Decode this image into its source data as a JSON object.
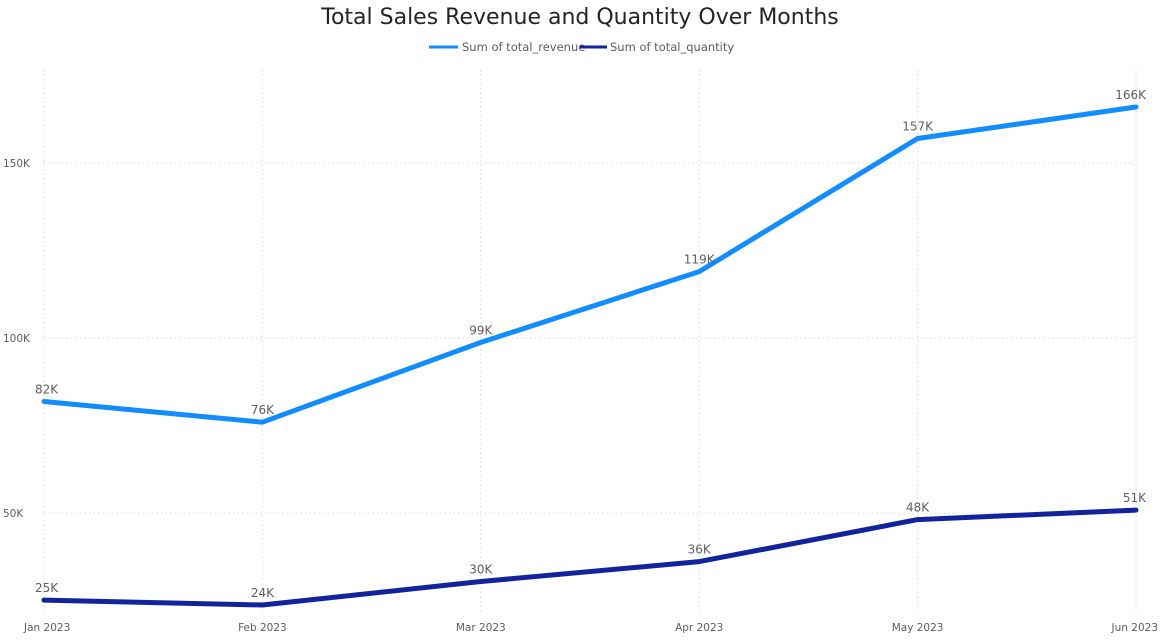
{
  "chart_data": {
    "type": "line",
    "title": "Total Sales Revenue and Quantity Over Months",
    "xlabel": "",
    "ylabel": "",
    "categories": [
      "Jan 2023",
      "Feb 2023",
      "Mar 2023",
      "Apr 2023",
      "May 2023",
      "Jun 2023"
    ],
    "series": [
      {
        "name": "Sum of total_revenue",
        "color": "#118DFF",
        "values": [
          81900,
          76000,
          98800,
          119000,
          157000,
          166000
        ],
        "labels": [
          "82K",
          "76K",
          "99K",
          "119K",
          "157K",
          "166K"
        ]
      },
      {
        "name": "Sum of total_quantity",
        "color": "#12239E",
        "values": [
          25200,
          23800,
          30500,
          36200,
          48200,
          50900
        ],
        "labels": [
          "25K",
          "24K",
          "30K",
          "36K",
          "48K",
          "51K"
        ]
      }
    ],
    "yticks": [
      50000,
      100000,
      150000
    ],
    "ytick_labels": [
      "50K",
      "100K",
      "150K"
    ],
    "ylim": [
      23800,
      180000
    ],
    "grid": true,
    "legend_position": "top-center"
  }
}
